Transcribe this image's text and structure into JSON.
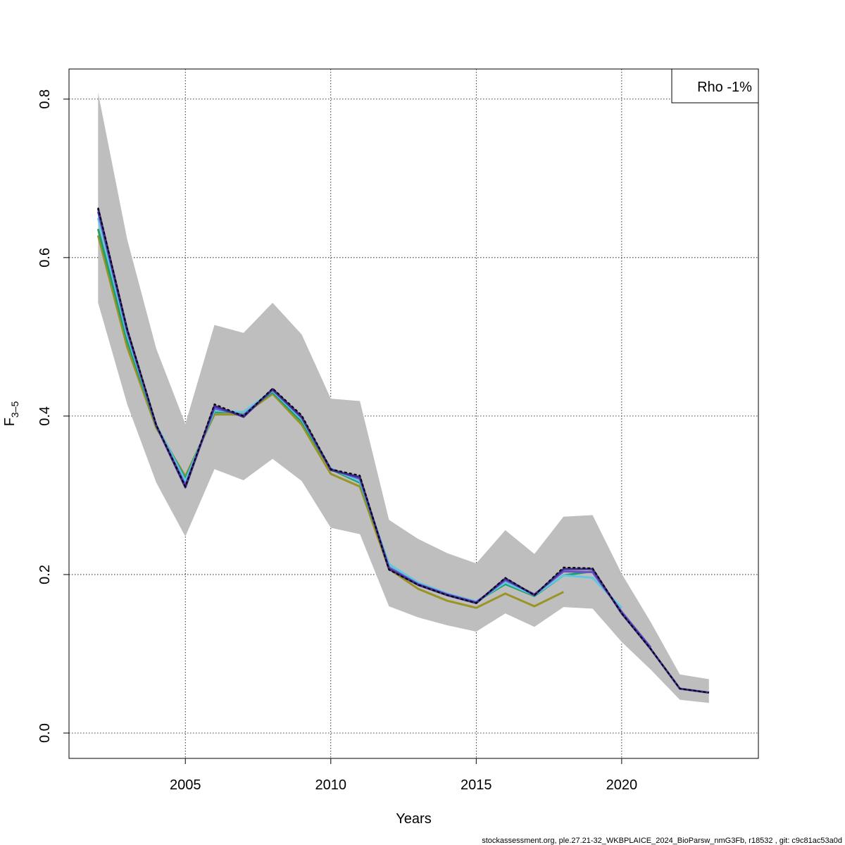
{
  "chart_data": {
    "type": "line",
    "xlabel": "Years",
    "ylabel": "F",
    "ylabel_subscript": "3–5",
    "xlim": [
      2001,
      2024.7
    ],
    "ylim": [
      -0.032,
      0.838
    ],
    "x_ticks": [
      2005,
      2010,
      2015,
      2020
    ],
    "y_ticks": [
      0.0,
      0.2,
      0.4,
      0.6,
      0.8
    ],
    "x_tick_labels": [
      "2005",
      "2010",
      "2015",
      "2020"
    ],
    "y_tick_labels": [
      "0.0",
      "0.2",
      "0.4",
      "0.6",
      "0.8"
    ],
    "grid": true,
    "legend": {
      "position": "top-right",
      "text": "Rho -1%"
    },
    "confidence_band": {
      "color": "#bebebe",
      "x": [
        2002,
        2003,
        2004,
        2005,
        2006,
        2007,
        2008,
        2009,
        2010,
        2011,
        2012,
        2013,
        2014,
        2015,
        2016,
        2017,
        2018,
        2019,
        2020,
        2021,
        2022,
        2023
      ],
      "lower": [
        0.543,
        0.415,
        0.316,
        0.248,
        0.333,
        0.319,
        0.346,
        0.318,
        0.259,
        0.251,
        0.16,
        0.146,
        0.136,
        0.128,
        0.151,
        0.134,
        0.159,
        0.157,
        0.115,
        0.08,
        0.042,
        0.038
      ],
      "upper": [
        0.808,
        0.623,
        0.485,
        0.39,
        0.515,
        0.505,
        0.543,
        0.503,
        0.422,
        0.419,
        0.269,
        0.245,
        0.227,
        0.214,
        0.256,
        0.226,
        0.273,
        0.275,
        0.201,
        0.14,
        0.074,
        0.068
      ]
    },
    "main_series": {
      "color": "#000000",
      "x": [
        2002,
        2003,
        2004,
        2005,
        2006,
        2007,
        2008,
        2009,
        2010,
        2011,
        2012,
        2013,
        2014,
        2015,
        2016,
        2017,
        2018,
        2019,
        2020,
        2021,
        2022,
        2023
      ],
      "values": [
        0.663,
        0.51,
        0.389,
        0.311,
        0.415,
        0.4,
        0.435,
        0.401,
        0.333,
        0.325,
        0.206,
        0.187,
        0.174,
        0.164,
        0.196,
        0.174,
        0.209,
        0.208,
        0.151,
        0.106,
        0.056,
        0.051
      ]
    },
    "series": [
      {
        "color": "#3d2b8e",
        "x": [
          2002,
          2003,
          2004,
          2005,
          2006,
          2007,
          2008,
          2009,
          2010,
          2011,
          2012,
          2013,
          2014,
          2015,
          2016,
          2017,
          2018,
          2019,
          2020,
          2021,
          2022,
          2023
        ],
        "values": [
          0.662,
          0.509,
          0.388,
          0.31,
          0.413,
          0.399,
          0.434,
          0.399,
          0.332,
          0.323,
          0.207,
          0.187,
          0.174,
          0.164,
          0.195,
          0.174,
          0.207,
          0.207,
          0.151,
          0.106,
          0.056,
          0.051
        ]
      },
      {
        "color": "#6a4fc7",
        "x": [
          2002,
          2003,
          2004,
          2005,
          2006,
          2007,
          2008,
          2009,
          2010,
          2011,
          2012,
          2013,
          2014,
          2015,
          2016,
          2017,
          2018,
          2019,
          2020,
          2021
        ],
        "values": [
          0.658,
          0.507,
          0.388,
          0.313,
          0.41,
          0.401,
          0.433,
          0.398,
          0.333,
          0.321,
          0.209,
          0.188,
          0.175,
          0.165,
          0.193,
          0.175,
          0.204,
          0.203,
          0.153,
          0.108
        ]
      },
      {
        "color": "#5ec8e0",
        "x": [
          2002,
          2003,
          2004,
          2005,
          2006,
          2007,
          2008,
          2009,
          2010,
          2011,
          2012,
          2013,
          2014,
          2015,
          2016,
          2017,
          2018,
          2019,
          2020
        ],
        "values": [
          0.65,
          0.502,
          0.389,
          0.318,
          0.407,
          0.405,
          0.432,
          0.396,
          0.334,
          0.318,
          0.213,
          0.19,
          0.176,
          0.166,
          0.19,
          0.174,
          0.199,
          0.196,
          0.158
        ]
      },
      {
        "color": "#1f9e6e",
        "x": [
          2002,
          2003,
          2004,
          2005,
          2006,
          2007,
          2008,
          2009,
          2010,
          2011,
          2012,
          2013,
          2014,
          2015,
          2016,
          2017,
          2018,
          2019
        ],
        "values": [
          0.636,
          0.495,
          0.388,
          0.321,
          0.405,
          0.405,
          0.43,
          0.393,
          0.333,
          0.316,
          0.213,
          0.189,
          0.175,
          0.166,
          0.188,
          0.173,
          0.199,
          0.204
        ]
      },
      {
        "color": "#9a9425",
        "x": [
          2002,
          2003,
          2004,
          2005,
          2006,
          2007,
          2008,
          2009,
          2010,
          2011,
          2012,
          2013,
          2014,
          2015,
          2016,
          2017,
          2018
        ],
        "values": [
          0.628,
          0.487,
          0.385,
          0.324,
          0.402,
          0.402,
          0.428,
          0.389,
          0.327,
          0.311,
          0.207,
          0.182,
          0.167,
          0.158,
          0.176,
          0.16,
          0.178
        ]
      }
    ]
  },
  "footer": "stockassessment.org, ple.27.21-32_WKBPLAICE_2024_BioParsw_nmG3Fb, r18532 , git: c9c81ac53a0d"
}
